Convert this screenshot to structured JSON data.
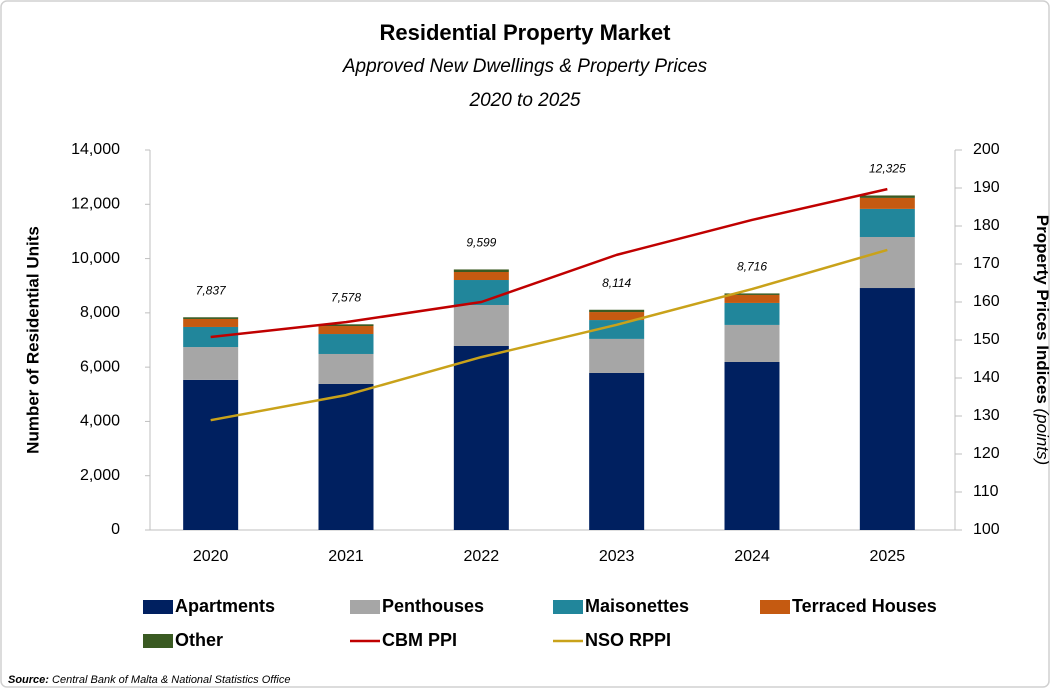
{
  "chart_data": {
    "type": "bar",
    "stacked": true,
    "title": "Residential Property Market",
    "subtitle": "Approved New Dwellings & Property Prices",
    "subtitle2": "2020 to 2025",
    "ylabel": "Number of Residential Units",
    "y2label": "Property Prices Indices",
    "y2label_unit": "(points)",
    "source_label": "Source:",
    "source": "Central Bank of Malta & National Statistics Office",
    "categories": [
      "2020",
      "2021",
      "2022",
      "2023",
      "2024",
      "2025"
    ],
    "series": [
      {
        "name": "Apartments",
        "type": "bar",
        "color": "#002060",
        "values": [
          5530,
          5380,
          6780,
          5785,
          6190,
          8915
        ]
      },
      {
        "name": "Penthouses",
        "type": "bar",
        "color": "#a6a6a6",
        "values": [
          1210,
          1105,
          1510,
          1255,
          1365,
          1880
        ]
      },
      {
        "name": "Maisonettes",
        "type": "bar",
        "color": "#21869b",
        "values": [
          740,
          735,
          920,
          695,
          810,
          1035
        ]
      },
      {
        "name": "Terraced Houses",
        "type": "bar",
        "color": "#c55a11",
        "values": [
          295,
          295,
          295,
          295,
          295,
          405
        ]
      },
      {
        "name": "Other",
        "type": "bar",
        "color": "#3a5a22",
        "values": [
          62,
          63,
          94,
          84,
          56,
          90
        ]
      },
      {
        "name": "CBM PPI",
        "type": "line",
        "axis": "y2",
        "color": "#c00000",
        "values": [
          150.8,
          154.7,
          160.0,
          172.4,
          181.6,
          189.7
        ]
      },
      {
        "name": "NSO RPPI",
        "type": "line",
        "axis": "y2",
        "color": "#c9a21a",
        "values": [
          128.9,
          135.5,
          145.5,
          154.0,
          163.4,
          173.7
        ]
      }
    ],
    "totals": {
      "values": [
        7837,
        7578,
        9599,
        8114,
        8716,
        12325
      ],
      "value_labels": [
        "7,837",
        "7,578",
        "9,599",
        "8,114",
        "8,716",
        "12,325"
      ]
    },
    "ylim": [
      0,
      14000
    ],
    "yticks": [
      0,
      {
        "value": 2000,
        "label": "2,000"
      },
      {
        "value": 4000,
        "label": "4,000"
      },
      {
        "value": 6000,
        "label": "6,000"
      },
      {
        "value": 8000,
        "label": "8,000"
      },
      {
        "value": 10000,
        "label": "10,000"
      },
      {
        "value": 12000,
        "label": "12,000"
      },
      {
        "value": 14000,
        "label": "14,000"
      }
    ],
    "y2lim": [
      100,
      200
    ],
    "y2ticks": [
      100,
      110,
      120,
      130,
      140,
      150,
      160,
      170,
      180,
      190,
      200
    ],
    "grid": false,
    "legend": "bottom"
  }
}
